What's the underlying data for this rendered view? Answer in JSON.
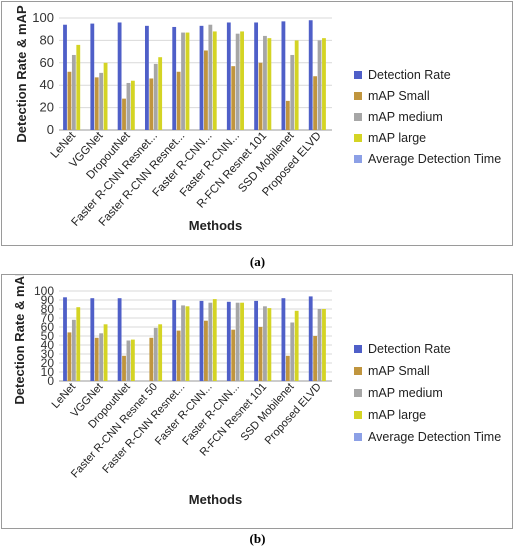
{
  "chart_data": [
    {
      "type": "bar",
      "title": "",
      "xlabel": "Methods",
      "ylabel": "Detection Rate & mAP",
      "ylim": [
        0,
        100
      ],
      "yticks": [
        0,
        20,
        40,
        60,
        80,
        100
      ],
      "grid": true,
      "legend_position": "right",
      "categories": [
        "LeNet",
        "VGGNet",
        "DropoutNet",
        "Faster R-CNN Resnet...",
        "Faster R-CNN Resnet...",
        "Faster R-CNN...",
        "Faster R-CNN...",
        "R-FCN Resnet 101",
        "SSD Mobilenet",
        "Proposed ELVD"
      ],
      "series": [
        {
          "name": "Detection Rate",
          "color": "#4f5fc8",
          "values": [
            94,
            95,
            96,
            93,
            92,
            93,
            96,
            96,
            97,
            98
          ]
        },
        {
          "name": "mAP Small",
          "color": "#c0953e",
          "values": [
            52,
            47,
            28,
            46,
            52,
            71,
            57,
            60,
            26,
            48
          ]
        },
        {
          "name": "mAP medium",
          "color": "#a6a6a6",
          "values": [
            67,
            51,
            42,
            59,
            87,
            94,
            86,
            84,
            67,
            80
          ]
        },
        {
          "name": "mAP large",
          "color": "#d4d424",
          "values": [
            76,
            60,
            44,
            65,
            87,
            88,
            88,
            82,
            80,
            82
          ]
        },
        {
          "name": "Average Detection Time",
          "color": "#8ca0e6",
          "values": [
            null,
            null,
            null,
            null,
            null,
            null,
            null,
            null,
            null,
            null
          ]
        }
      ]
    },
    {
      "type": "bar",
      "title": "",
      "xlabel": "Methods",
      "ylabel": "Detection Rate & mAP",
      "ylim": [
        0,
        100
      ],
      "yticks": [
        0,
        10,
        20,
        30,
        40,
        50,
        60,
        70,
        80,
        90,
        100
      ],
      "grid": true,
      "legend_position": "right",
      "categories": [
        "LeNet",
        "VGGNet",
        "DropoutNet",
        "Faster R-CNN Resnet 50",
        "Faster R-CNN Resnet...",
        "Faster R-CNN...",
        "Faster R-CNN...",
        "R-FCN Resnet 101",
        "SSD Mobilenet",
        "Proposed ELVD"
      ],
      "series": [
        {
          "name": "Detection Rate",
          "color": "#4f5fc8",
          "values": [
            93,
            92,
            92,
            null,
            90,
            89,
            88,
            89,
            92,
            94
          ]
        },
        {
          "name": "mAP Small",
          "color": "#c0953e",
          "values": [
            54,
            48,
            28,
            48,
            56,
            67,
            57,
            60,
            28,
            50
          ]
        },
        {
          "name": "mAP medium",
          "color": "#a6a6a6",
          "values": [
            68,
            53,
            45,
            59,
            84,
            87,
            87,
            83,
            65,
            80
          ]
        },
        {
          "name": "mAP large",
          "color": "#d4d424",
          "values": [
            82,
            63,
            46,
            63,
            83,
            91,
            87,
            81,
            78,
            80
          ]
        },
        {
          "name": "Average Detection Time",
          "color": "#8ca0e6",
          "values": [
            null,
            null,
            null,
            null,
            null,
            null,
            null,
            null,
            null,
            null
          ]
        }
      ]
    }
  ],
  "captions": [
    "(a)",
    "(b)"
  ]
}
